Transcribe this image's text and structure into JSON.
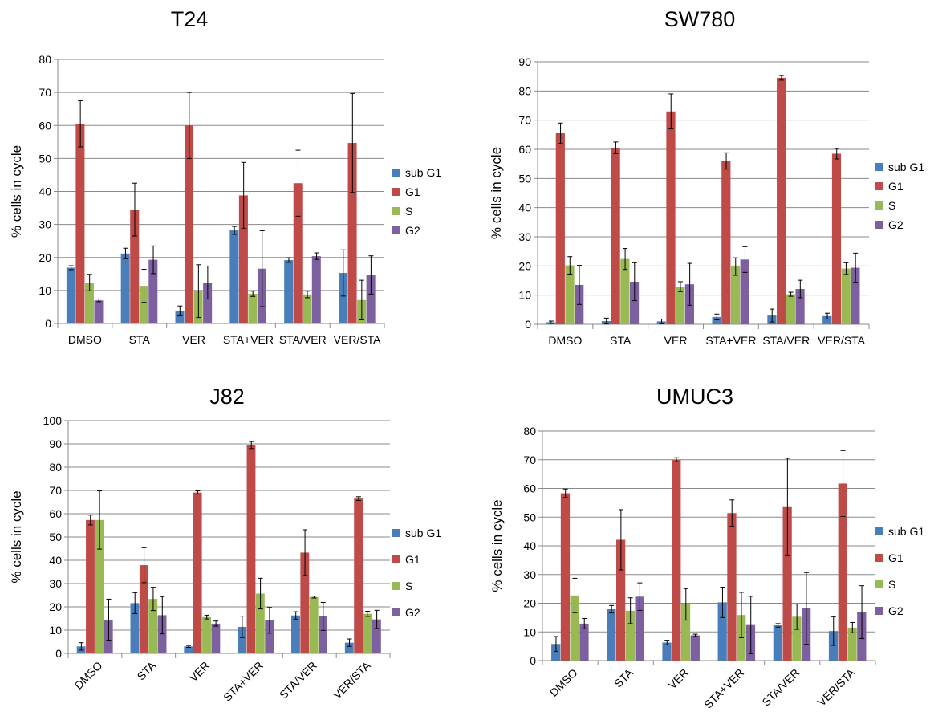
{
  "colors": {
    "sub G1": "#4a7ebb",
    "G1": "#be4b48",
    "S": "#98b954",
    "G2": "#7d60a0"
  },
  "chart_data": [
    {
      "type": "bar",
      "title": "T24",
      "ylabel": "% cells in cycle",
      "xlabel": "",
      "ylim": [
        0,
        80
      ],
      "ytick_step": 10,
      "grid": true,
      "legend_position": "right",
      "x_label_rotation": "none",
      "categories": [
        "DMSO",
        "STA",
        "VER",
        "STA+VER",
        "STA/VER",
        "VER/STA"
      ],
      "series": [
        {
          "name": "sub G1",
          "values": [
            16.9,
            21.2,
            3.8,
            28.2,
            19.2,
            15.3
          ],
          "errors": [
            0.6,
            1.6,
            1.5,
            1.2,
            0.7,
            7.0
          ]
        },
        {
          "name": "G1",
          "values": [
            60.5,
            34.5,
            60.0,
            38.8,
            42.5,
            54.7
          ],
          "errors": [
            7.0,
            8.0,
            10.0,
            10.0,
            10.0,
            15.0
          ]
        },
        {
          "name": "S",
          "values": [
            12.4,
            11.4,
            9.8,
            9.0,
            8.8,
            7.1
          ],
          "errors": [
            2.5,
            5.0,
            8.0,
            0.8,
            1.0,
            6.0
          ]
        },
        {
          "name": "G2",
          "values": [
            7.0,
            19.3,
            12.4,
            16.6,
            20.4,
            14.7
          ],
          "errors": [
            0.4,
            4.2,
            5.0,
            11.5,
            1.0,
            5.8
          ]
        }
      ]
    },
    {
      "type": "bar",
      "title": "SW780",
      "ylabel": "% cells in cycle",
      "xlabel": "",
      "ylim": [
        0,
        90
      ],
      "ytick_step": 10,
      "grid": true,
      "legend_position": "right",
      "x_label_rotation": "none",
      "categories": [
        "DMSO",
        "STA",
        "VER",
        "STA+VER",
        "STA/VER",
        "VER/STA"
      ],
      "series": [
        {
          "name": "sub G1",
          "values": [
            0.7,
            1.1,
            1.0,
            2.5,
            3.0,
            2.8
          ],
          "errors": [
            0.4,
            1.0,
            0.8,
            1.0,
            2.2,
            1.0
          ]
        },
        {
          "name": "G1",
          "values": [
            65.5,
            60.5,
            73.0,
            56.0,
            84.5,
            58.5
          ],
          "errors": [
            3.5,
            2.0,
            6.0,
            2.8,
            0.8,
            1.8
          ]
        },
        {
          "name": "S",
          "values": [
            20.2,
            22.4,
            12.9,
            19.8,
            10.3,
            19.1
          ],
          "errors": [
            3.0,
            3.6,
            1.7,
            3.0,
            0.7,
            2.0
          ]
        },
        {
          "name": "G2",
          "values": [
            13.5,
            14.6,
            13.7,
            22.2,
            12.1,
            19.4
          ],
          "errors": [
            6.7,
            6.5,
            7.2,
            4.4,
            3.0,
            5.0
          ]
        }
      ]
    },
    {
      "type": "bar",
      "title": "J82",
      "ylabel": "% cells in cycle",
      "xlabel": "",
      "ylim": [
        0,
        100
      ],
      "ytick_step": 10,
      "grid": true,
      "legend_position": "right",
      "x_label_rotation": "rotated",
      "categories": [
        "DMSO",
        "STA",
        "VER",
        "STA+VER",
        "STA/VER",
        "VER/STA"
      ],
      "series": [
        {
          "name": "sub G1",
          "values": [
            3.0,
            21.6,
            3.0,
            11.4,
            16.3,
            4.6
          ],
          "errors": [
            1.6,
            4.5,
            0.4,
            4.6,
            1.6,
            1.6
          ]
        },
        {
          "name": "G1",
          "values": [
            57.3,
            37.9,
            69.1,
            89.5,
            43.3,
            66.5
          ],
          "errors": [
            2.1,
            7.5,
            0.7,
            1.5,
            9.8,
            0.8
          ]
        },
        {
          "name": "S",
          "values": [
            57.3,
            23.4,
            15.6,
            25.7,
            24.2,
            17.0
          ],
          "errors": [
            12.5,
            5.0,
            0.8,
            6.6,
            0.4,
            1.1
          ]
        },
        {
          "name": "G2",
          "values": [
            14.5,
            16.4,
            12.8,
            14.2,
            15.9,
            14.6
          ],
          "errors": [
            8.8,
            8.0,
            1.1,
            5.5,
            6.0,
            3.9
          ]
        }
      ]
    },
    {
      "type": "bar",
      "title": "UMUC3",
      "ylabel": "% cells in cycle",
      "xlabel": "",
      "ylim": [
        0,
        80
      ],
      "ytick_step": 10,
      "grid": true,
      "legend_position": "right",
      "x_label_rotation": "rotated",
      "categories": [
        "DMSO",
        "STA",
        "VER",
        "STA+VER",
        "STA/VER",
        "VER/STA"
      ],
      "series": [
        {
          "name": "sub G1",
          "values": [
            5.8,
            17.9,
            6.3,
            20.3,
            12.3,
            10.3
          ],
          "errors": [
            2.6,
            1.3,
            0.8,
            5.3,
            0.6,
            5.0
          ]
        },
        {
          "name": "G1",
          "values": [
            58.3,
            42.1,
            70.0,
            51.4,
            53.5,
            61.7
          ],
          "errors": [
            1.5,
            10.5,
            0.7,
            4.6,
            17.0,
            11.5
          ]
        },
        {
          "name": "S",
          "values": [
            22.7,
            17.4,
            19.6,
            15.9,
            15.3,
            11.5
          ],
          "errors": [
            6.0,
            4.5,
            5.5,
            7.9,
            4.4,
            1.8
          ]
        },
        {
          "name": "G2",
          "values": [
            12.9,
            22.3,
            8.8,
            12.4,
            18.2,
            16.9
          ],
          "errors": [
            1.8,
            4.8,
            0.4,
            10.0,
            12.5,
            9.2
          ]
        }
      ]
    }
  ]
}
